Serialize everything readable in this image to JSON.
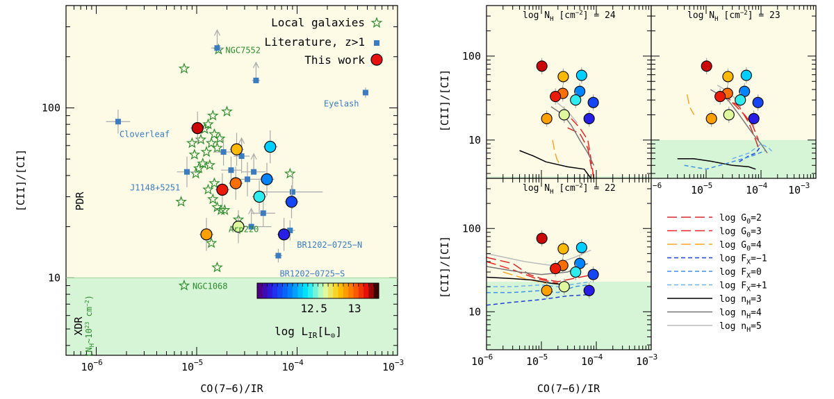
{
  "colors": {
    "pdr_bg": "#fdfbe6",
    "xdr_bg": "#d6f5d6",
    "local": "#2e8b2e",
    "literature": "#3a7cbf",
    "error": "#aaaaaa"
  },
  "chart_data": [
    {
      "type": "scatter",
      "id": "main",
      "xlabel": "CO(7−6)/IR",
      "ylabel": "[CII]/[CI]",
      "xscale": "log",
      "yscale": "log",
      "xlim": [
        5e-07,
        0.001
      ],
      "ylim": [
        3.5,
        400
      ],
      "xtick_labels": [
        "10",
        "10",
        "10",
        "10"
      ],
      "xtick_exponents": [
        "−6",
        "−5",
        "−4",
        "−3"
      ],
      "xtick_values": [
        1e-06,
        1e-05,
        0.0001,
        0.001
      ],
      "ytick_labels": [
        "10",
        "100"
      ],
      "ytick_values": [
        10,
        100
      ],
      "xdr_threshold": 10,
      "region_pdr": "PDR",
      "region_xdr": "XDR",
      "region_xdr_sub": "(N",
      "region_xdr_sub2": "H",
      "region_xdr_sub3": "~10",
      "region_xdr_sub4": "23",
      "region_xdr_sub5": " cm",
      "region_xdr_sub6": "−2",
      "region_xdr_sub7": ")",
      "legend": {
        "local": "Local galaxies",
        "literature": "Literature, z>1",
        "this_work": "This work"
      },
      "colorbar": {
        "label": "log L",
        "label_sub": "IR",
        "label_units": "[L",
        "label_units_sub": "⊙",
        "label_units_end": "]",
        "min": 11.8,
        "max": 13.3,
        "tick_labels": [
          "12.5",
          "13"
        ],
        "tick_values": [
          12.5,
          13.0
        ]
      },
      "local_galaxies": [
        {
          "x": 7.5e-06,
          "y": 170
        },
        {
          "x": 1.65e-05,
          "y": 220
        },
        {
          "x": 1.45e-05,
          "y": 90
        },
        {
          "x": 2e-05,
          "y": 95
        },
        {
          "x": 1.3e-05,
          "y": 80
        },
        {
          "x": 1.5e-05,
          "y": 70
        },
        {
          "x": 1.7e-05,
          "y": 66
        },
        {
          "x": 1.2e-05,
          "y": 75
        },
        {
          "x": 1.4e-05,
          "y": 62
        },
        {
          "x": 1.6e-05,
          "y": 58
        },
        {
          "x": 1.1e-05,
          "y": 65
        },
        {
          "x": 9e-06,
          "y": 62
        },
        {
          "x": 9.5e-06,
          "y": 53
        },
        {
          "x": 1.25e-05,
          "y": 55
        },
        {
          "x": 1.35e-05,
          "y": 46
        },
        {
          "x": 1.15e-05,
          "y": 47
        },
        {
          "x": 1.05e-05,
          "y": 44
        },
        {
          "x": 9.8e-06,
          "y": 41
        },
        {
          "x": 1.5e-05,
          "y": 36
        },
        {
          "x": 1.45e-05,
          "y": 29
        },
        {
          "x": 1.6e-05,
          "y": 26
        },
        {
          "x": 1.75e-05,
          "y": 25
        },
        {
          "x": 1.9e-05,
          "y": 25
        },
        {
          "x": 7e-06,
          "y": 28
        },
        {
          "x": 1.4e-05,
          "y": 16
        },
        {
          "x": 1.6e-05,
          "y": 11.5
        },
        {
          "x": 8.5e-05,
          "y": 41
        },
        {
          "x": 1.3e-05,
          "y": 33
        },
        {
          "x": 2.6e-05,
          "y": 22
        },
        {
          "x": 7.5e-06,
          "y": 9
        }
      ],
      "local_labels": [
        {
          "text": "NGC7552",
          "x": 1.65e-05,
          "y": 220
        },
        {
          "text": "Arp220",
          "x": 2.6e-05,
          "y": 22
        },
        {
          "text": "NGC1068",
          "x": 7.5e-06,
          "y": 9
        }
      ],
      "literature": [
        {
          "x": 1.65e-06,
          "y": 83,
          "xerr": 0.12,
          "yerr": 0.07
        },
        {
          "x": 1.6e-05,
          "y": 225,
          "xerr": 0.06,
          "yerr": 0,
          "up": true
        },
        {
          "x": 3.9e-05,
          "y": 145,
          "xerr": 0.04,
          "yerr": 0,
          "up": true
        },
        {
          "x": 0.00048,
          "y": 123,
          "xerr": 0.03,
          "yerr": 0.03
        },
        {
          "x": 8e-06,
          "y": 42,
          "xerr": 0.1,
          "yerr": 0.09
        },
        {
          "x": 1.85e-05,
          "y": 55,
          "xerr": 0.1,
          "yerr": 0.08
        },
        {
          "x": 2.2e-05,
          "y": 43,
          "xerr": 0.1,
          "yerr": 0.08
        },
        {
          "x": 2.8e-05,
          "y": 52,
          "xerr": 0.08,
          "yerr": 0.1,
          "up": true
        },
        {
          "x": 3.2e-05,
          "y": 38,
          "xerr": 0.15,
          "yerr": 0.1
        },
        {
          "x": 3.7e-05,
          "y": 42,
          "xerr": 0.12,
          "yerr": 0,
          "up": true
        },
        {
          "x": 4.6e-05,
          "y": 24,
          "xerr": 0.12,
          "yerr": 0.08
        },
        {
          "x": 9e-05,
          "y": 32,
          "xerr": 0.3,
          "yerr": 0.1
        },
        {
          "x": 8.5e-05,
          "y": 19,
          "xerr": 0.05,
          "yerr": 0.06
        },
        {
          "x": 6.5e-05,
          "y": 13.5,
          "xerr": 0.04,
          "yerr": 0.04
        },
        {
          "x": 3.5e-05,
          "y": 20,
          "xerr": 0.2,
          "yerr": 0,
          "up": true
        }
      ],
      "literature_labels": [
        {
          "text": "Cloverleaf",
          "x": 1.65e-06,
          "y": 83
        },
        {
          "text": "Eyelash",
          "x": 0.00048,
          "y": 123
        },
        {
          "text": "J1148+5251",
          "x": 8e-06,
          "y": 42
        },
        {
          "text": "BR1202−0725−N",
          "x": 8.5e-05,
          "y": 19
        },
        {
          "text": "BR1202−0725−S",
          "x": 6.5e-05,
          "y": 13.5
        }
      ],
      "this_work": [
        {
          "x": 1.02e-05,
          "y": 76,
          "logLIR": 13.2
        },
        {
          "x": 2.5e-05,
          "y": 57,
          "logLIR": 12.85
        },
        {
          "x": 2.45e-05,
          "y": 36,
          "logLIR": 13.0
        },
        {
          "x": 1.8e-05,
          "y": 33,
          "logLIR": 13.15
        },
        {
          "x": 5.4e-05,
          "y": 59,
          "logLIR": 12.35
        },
        {
          "x": 5e-05,
          "y": 38,
          "logLIR": 12.2
        },
        {
          "x": 4.2e-05,
          "y": 30,
          "logLIR": 12.45
        },
        {
          "x": 8.8e-05,
          "y": 28,
          "logLIR": 12.05
        },
        {
          "x": 1.25e-05,
          "y": 18,
          "logLIR": 12.9
        },
        {
          "x": 2.6e-05,
          "y": 20,
          "logLIR": 12.65
        },
        {
          "x": 7.4e-05,
          "y": 18,
          "logLIR": 11.95
        }
      ]
    },
    {
      "type": "line",
      "id": "models",
      "xlabel": "CO(7−6)/IR",
      "ylabel": "[CII]/[CI]",
      "xscale": "log",
      "yscale": "log",
      "xlim": [
        1e-06,
        0.001
      ],
      "ylim": [
        3.5,
        400
      ],
      "panels": [
        {
          "header": "log N",
          "header_sub": "H",
          "header_units": " [cm",
          "header_exp": "−2",
          "header_end": "] = 24",
          "xdr_threshold": 3.7
        },
        {
          "header": "log N",
          "header_sub": "H",
          "header_units": " [cm",
          "header_exp": "−2",
          "header_end": "] = 23",
          "xdr_threshold": 10
        },
        {
          "header": "log N",
          "header_sub": "H",
          "header_units": " [cm",
          "header_exp": "−2",
          "header_end": "] = 22",
          "xdr_threshold": 23
        }
      ],
      "xtick_labels": [
        "10",
        "10",
        "10",
        "10"
      ],
      "xtick_exponents": [
        "−6",
        "−5",
        "−4",
        "−3"
      ],
      "ytick_labels": [
        "10",
        "100"
      ],
      "legend": [
        {
          "label": "log G",
          "sub": "0",
          "tail": "=2",
          "color": "#d62728",
          "dash": "14,6",
          "width": 1.5
        },
        {
          "label": "log G",
          "sub": "0",
          "tail": "=3",
          "color": "#ee2222",
          "dash": "14,6",
          "width": 1.5
        },
        {
          "label": "log G",
          "sub": "0",
          "tail": "=4",
          "color": "#f5a623",
          "dash": "14,6",
          "width": 1.5
        },
        {
          "label": "log F",
          "sub": "X",
          "tail": "=−1",
          "color": "#1f3fd6",
          "dash": "6,4",
          "width": 1.5
        },
        {
          "label": "log F",
          "sub": "X",
          "tail": "=0",
          "color": "#3f8fe8",
          "dash": "6,4",
          "width": 1.5
        },
        {
          "label": "log F",
          "sub": "X",
          "tail": "=+1",
          "color": "#6fb0f0",
          "dash": "6,4",
          "width": 1.5
        },
        {
          "label": "log n",
          "sub": "H",
          "tail": "=3",
          "color": "#000000",
          "dash": "",
          "width": 1.5
        },
        {
          "label": "log n",
          "sub": "H",
          "tail": "=4",
          "color": "#777777",
          "dash": "",
          "width": 1.5
        },
        {
          "label": "log n",
          "sub": "H",
          "tail": "=5",
          "color": "#bbbbbb",
          "dash": "",
          "width": 1.5
        }
      ]
    }
  ]
}
